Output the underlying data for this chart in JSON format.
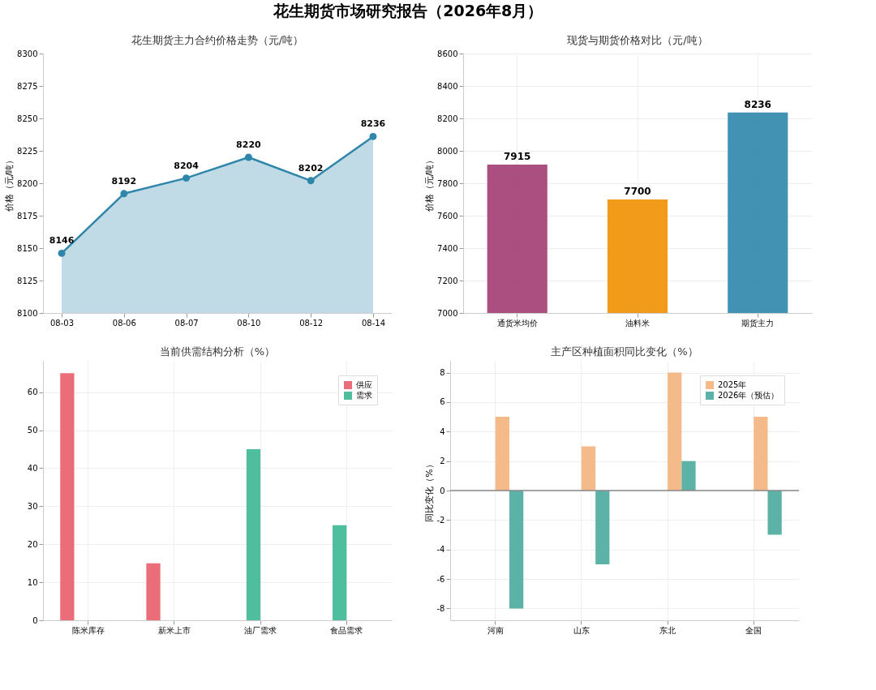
{
  "chart_data": [
    {
      "type": "area",
      "title": "花生期货主力合约价格走势（元/吨）",
      "ylabel": "价格（元/吨）",
      "annotations": [
        "花生期货市场研究报告（2026年8月）"
      ],
      "categories": [
        "08-03",
        "08-06",
        "08-07",
        "08-10",
        "08-12",
        "08-14"
      ],
      "series": [
        {
          "color": "#2e86ab",
          "values": [
            8146,
            8192,
            8204,
            8220,
            8202,
            8236
          ]
        }
      ],
      "ylim": [
        8100,
        8300
      ],
      "yticks": [
        8100,
        8125,
        8150,
        8175,
        8200,
        8225,
        8250,
        8275,
        8300
      ],
      "data_labels": true,
      "marker": "circle",
      "line_style": "solid",
      "grid": false
    },
    {
      "type": "bar",
      "title": "现货与期货价格对比（元/吨）",
      "ylabel": "价格（元/吨）",
      "categories": [
        "通货米均价",
        "油料米",
        "期货主力"
      ],
      "values": [
        7915,
        7700,
        8236
      ],
      "colors": [
        "#a23b72",
        "#f18f01",
        "#2e86ab"
      ],
      "ylim": [
        7000,
        8600
      ],
      "yticks": [
        7000,
        7200,
        7400,
        7600,
        7800,
        8000,
        8200,
        8400,
        8600
      ],
      "data_labels": true,
      "grid": true
    },
    {
      "type": "bar",
      "title": "当前供需结构分析（%）",
      "categories": [
        "陈米库存",
        "新米上市",
        "油厂需求",
        "食品需求"
      ],
      "series": [
        {
          "name": "供应",
          "color": "#e85d6a",
          "values": [
            65,
            15,
            null,
            null
          ]
        },
        {
          "name": "需求",
          "color": "#3bb795",
          "values": [
            null,
            null,
            45,
            25
          ]
        }
      ],
      "ylim": [
        0,
        68.25
      ],
      "yticks": [
        0,
        10,
        20,
        30,
        40,
        50,
        60
      ],
      "grid": true,
      "legend": "top right"
    },
    {
      "type": "bar",
      "title": "主产区种植面积同比变化（%）",
      "ylabel": "同比变化（%）",
      "categories": [
        "河南",
        "山东",
        "东北",
        "全国"
      ],
      "series": [
        {
          "name": "2025年",
          "color": "#f4b27c",
          "values": [
            5,
            3,
            8,
            5
          ]
        },
        {
          "name": "2026年（预估）",
          "color": "#4aaa9c",
          "values": [
            -8,
            -5,
            2,
            -3
          ]
        }
      ],
      "ylim": [
        -8.8,
        8.8
      ],
      "yticks": [
        -8,
        -6,
        -4,
        -2,
        0,
        2,
        4,
        6,
        8
      ],
      "ref_lines": [
        {
          "axis": "y",
          "value": 0,
          "color": "#888888"
        }
      ],
      "grid": true,
      "legend": "top right"
    }
  ]
}
